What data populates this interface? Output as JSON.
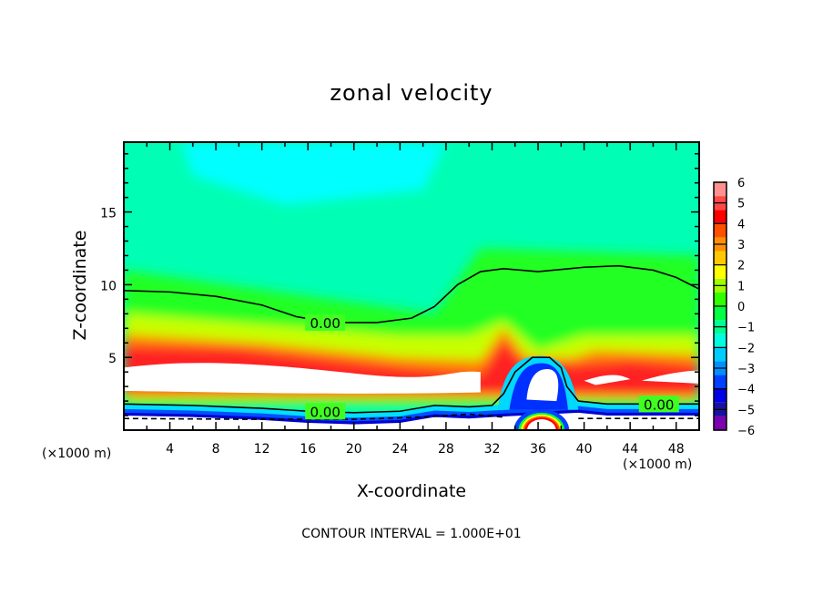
{
  "chart_data": {
    "type": "heatmap",
    "subtype": "filled-contour",
    "title": "zonal velocity",
    "xlabel": "X-coordinate",
    "ylabel": "Z-coordinate",
    "x_units_label": "(×1000 m)",
    "y_units_label": "(×1000 m)",
    "xlim": [
      0,
      50
    ],
    "ylim": [
      0,
      19.8
    ],
    "x_ticks": [
      4,
      8,
      12,
      16,
      20,
      24,
      28,
      32,
      36,
      40,
      44,
      48
    ],
    "y_ticks": [
      5,
      10,
      15
    ],
    "footer": "CONTOUR INTERVAL = 1.000E+01",
    "colorbar": {
      "ticks": [
        6,
        5,
        4,
        3,
        2,
        1,
        0,
        -1,
        -2,
        -3,
        -4,
        -5,
        -6
      ],
      "tick_labels": [
        "6",
        "5",
        "4",
        "3",
        "2",
        "1",
        "0",
        "−1",
        "−2",
        "−3",
        "−4",
        "−5",
        "−6"
      ],
      "range": [
        -6,
        6
      ],
      "colors": [
        "#7b00b0",
        "#1a10a0",
        "#0000e8",
        "#0040ff",
        "#0090ff",
        "#00ccff",
        "#00ffe0",
        "#00ff90",
        "#00ff40",
        "#30ff00",
        "#a0ff00",
        "#ffff00",
        "#ffc800",
        "#ff9000",
        "#ff5000",
        "#ff0000",
        "#ff4848",
        "#ff9090"
      ]
    },
    "contour_labels": [
      {
        "text": "0.00",
        "x": 17.5,
        "z": 7.4
      },
      {
        "text": "0.00",
        "x": 17.5,
        "z": 1.3
      },
      {
        "text": "0.00",
        "x": 46.5,
        "z": 1.8
      }
    ],
    "zero_contour_upper": [
      [
        0,
        9.6
      ],
      [
        4,
        9.5
      ],
      [
        8,
        9.2
      ],
      [
        12,
        8.6
      ],
      [
        15,
        7.8
      ],
      [
        18,
        7.4
      ],
      [
        22,
        7.4
      ],
      [
        25,
        7.7
      ],
      [
        27,
        8.5
      ],
      [
        29,
        10.0
      ],
      [
        31,
        10.9
      ],
      [
        33,
        11.1
      ],
      [
        36,
        10.9
      ],
      [
        40,
        11.2
      ],
      [
        43,
        11.3
      ],
      [
        46,
        11.0
      ],
      [
        48,
        10.5
      ],
      [
        50,
        9.7
      ]
    ],
    "zero_contour_lower": [
      [
        0,
        1.8
      ],
      [
        6,
        1.7
      ],
      [
        12,
        1.5
      ],
      [
        16,
        1.3
      ],
      [
        20,
        1.2
      ],
      [
        24,
        1.3
      ],
      [
        27,
        1.7
      ],
      [
        30,
        1.6
      ],
      [
        32,
        1.7
      ],
      [
        33,
        2.5
      ],
      [
        34,
        4.0
      ],
      [
        35.5,
        5.0
      ],
      [
        37,
        5.0
      ],
      [
        38,
        4.3
      ],
      [
        38.5,
        3.0
      ],
      [
        39.5,
        2.0
      ],
      [
        42,
        1.8
      ],
      [
        46,
        1.8
      ],
      [
        50,
        1.8
      ]
    ],
    "field_description": "Westerly (positive) jet band ~2.5-5 km with values >6 (white) across domain; negative core near x=34-39, z=1.5-5; strong negative near surface; weak negative (-1 to -2) aloft"
  }
}
